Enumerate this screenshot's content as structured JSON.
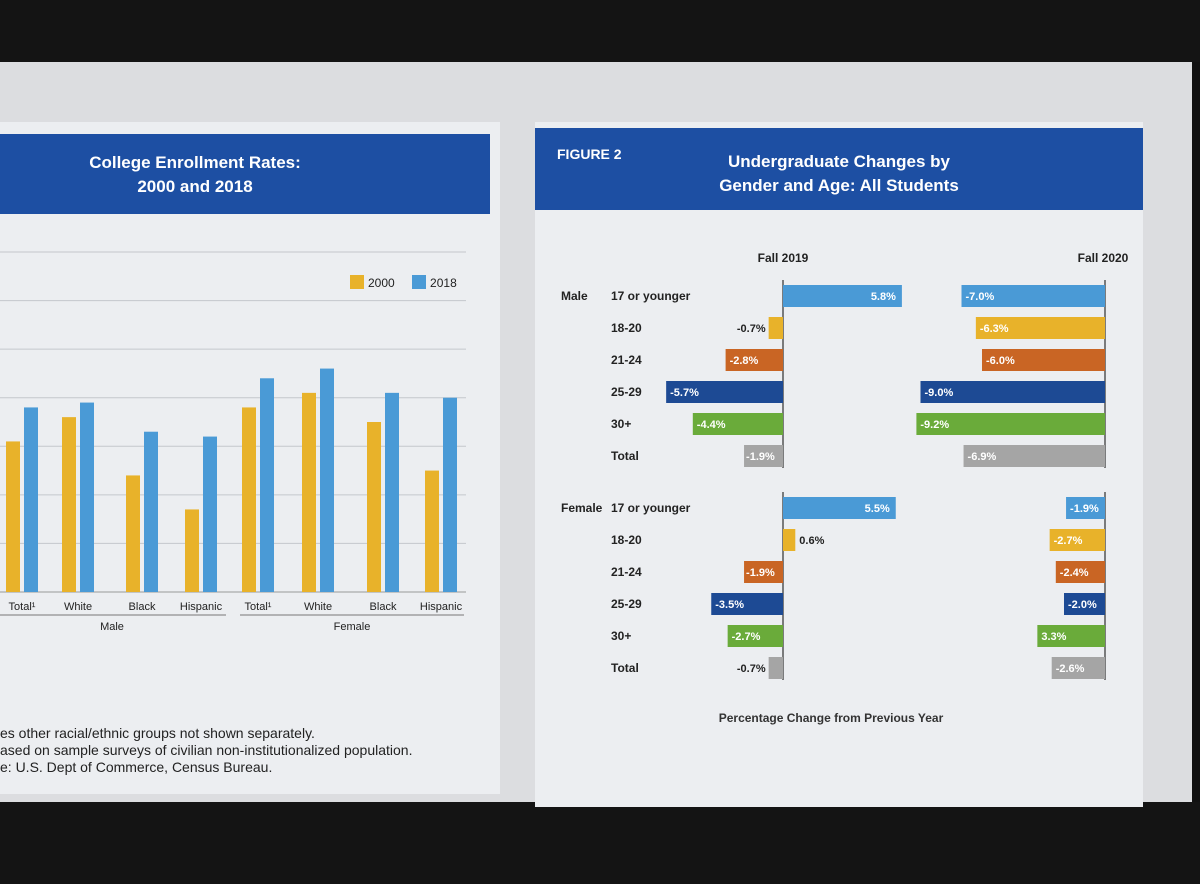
{
  "left_figure": {
    "title_line1": "College Enrollment Rates:",
    "title_line2": "2000 and 2018",
    "legend": [
      {
        "label": "2000",
        "color": "#e8b22a"
      },
      {
        "label": "2018",
        "color": "#4a9ad6"
      }
    ],
    "group_labels": [
      "Male",
      "Female"
    ],
    "notes": [
      "es other racial/ethnic groups not shown separately.",
      "ased on sample surveys of civilian non-institutionalized population.",
      "e: U.S. Dept of Commerce, Census Bureau."
    ]
  },
  "right_figure": {
    "figure_label": "FIGURE 2",
    "title_line1": "Undergraduate Changes by",
    "title_line2": "Gender and Age: All Students",
    "col1_label": "Fall 2019",
    "col2_label": "Fall 2020",
    "x_axis_label": "Percentage Change from Previous Year",
    "group_labels": [
      "Male",
      "Female"
    ]
  },
  "chart_data": [
    {
      "type": "bar",
      "title": "College Enrollment Rates: 2000 and 2018",
      "categories": [
        "Total¹",
        "White",
        "Black",
        "Hispanic",
        "Total¹",
        "White",
        "Black",
        "Hispanic"
      ],
      "category_groups": [
        "Male",
        "Male",
        "Male",
        "Male",
        "Female",
        "Female",
        "Female",
        "Female"
      ],
      "series": [
        {
          "name": "2000",
          "color": "#e8b22a",
          "values": [
            31,
            36,
            24,
            17,
            38,
            41,
            35,
            25
          ]
        },
        {
          "name": "2018",
          "color": "#4a9ad6",
          "values": [
            38,
            39,
            33,
            32,
            44,
            46,
            41,
            40
          ]
        }
      ],
      "ylim": [
        0,
        70
      ],
      "grid": true,
      "legend_position": "top-right"
    },
    {
      "type": "bar",
      "orientation": "horizontal",
      "title": "Undergraduate Changes by Gender and Age: All Students",
      "xlabel": "Percentage Change from Previous Year",
      "rows": [
        {
          "group": "Male",
          "category": "17 or younger",
          "fall_2019": 5.8,
          "fall_2019_label": "5.8%",
          "fall_2020": -7.0,
          "fall_2020_label": "-7.0%",
          "color": "#4a9ad6"
        },
        {
          "group": "",
          "category": "18-20",
          "fall_2019": -0.7,
          "fall_2019_label": "-0.7%",
          "fall_2020": -6.3,
          "fall_2020_label": "-6.3%",
          "color": "#e8b22a"
        },
        {
          "group": "",
          "category": "21-24",
          "fall_2019": -2.8,
          "fall_2019_label": "-2.8%",
          "fall_2020": -6.0,
          "fall_2020_label": "-6.0%",
          "color": "#c96524"
        },
        {
          "group": "",
          "category": "25-29",
          "fall_2019": -5.7,
          "fall_2019_label": "-5.7%",
          "fall_2020": -9.0,
          "fall_2020_label": "-9.0%",
          "color": "#1d4a94"
        },
        {
          "group": "",
          "category": "30+",
          "fall_2019": -4.4,
          "fall_2019_label": "-4.4%",
          "fall_2020": -9.2,
          "fall_2020_label": "-9.2%",
          "color": "#6aab3a"
        },
        {
          "group": "",
          "category": "Total",
          "fall_2019": -1.9,
          "fall_2019_label": "-1.9%",
          "fall_2020": -6.9,
          "fall_2020_label": "-6.9%",
          "color": "#a5a5a5"
        },
        {
          "group": "Female",
          "category": "17 or younger",
          "fall_2019": 5.5,
          "fall_2019_label": "5.5%",
          "fall_2020": -1.9,
          "fall_2020_label": "-1.9%",
          "color": "#4a9ad6"
        },
        {
          "group": "",
          "category": "18-20",
          "fall_2019": 0.6,
          "fall_2019_label": "0.6%",
          "fall_2020": -2.7,
          "fall_2020_label": "-2.7%",
          "color": "#e8b22a"
        },
        {
          "group": "",
          "category": "21-24",
          "fall_2019": -1.9,
          "fall_2019_label": "-1.9%",
          "fall_2020": -2.4,
          "fall_2020_label": "-2.4%",
          "color": "#c96524"
        },
        {
          "group": "",
          "category": "25-29",
          "fall_2019": -3.5,
          "fall_2019_label": "-3.5%",
          "fall_2020": -2.0,
          "fall_2020_label": "-2.0%",
          "color": "#1d4a94"
        },
        {
          "group": "",
          "category": "30+",
          "fall_2019": -2.7,
          "fall_2019_label": "-2.7%",
          "fall_2020": 3.3,
          "fall_2020_label": "3.3%",
          "color": "#6aab3a"
        },
        {
          "group": "",
          "category": "Total",
          "fall_2019": -0.7,
          "fall_2019_label": "-0.7%",
          "fall_2020": -2.6,
          "fall_2020_label": "-2.6%",
          "color": "#a5a5a5"
        }
      ]
    }
  ]
}
